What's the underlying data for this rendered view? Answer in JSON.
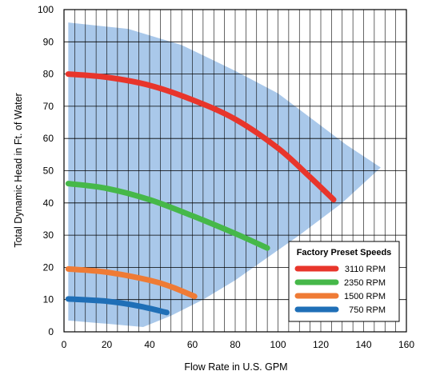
{
  "chart_data": {
    "type": "line",
    "xlabel": "Flow Rate in U.S. GPM",
    "ylabel": "Total Dynamic Head in Ft. of Water",
    "xlim": [
      0,
      160
    ],
    "ylim": [
      0,
      100
    ],
    "x_ticks": [
      0,
      20,
      40,
      60,
      80,
      100,
      120,
      140,
      160
    ],
    "y_ticks": [
      0,
      10,
      20,
      30,
      40,
      50,
      60,
      70,
      80,
      90,
      100
    ],
    "x_minor_step": 5,
    "grid": true,
    "operating_region": {
      "color": "#a9c8ea",
      "boundary": [
        [
          2,
          96
        ],
        [
          30,
          94
        ],
        [
          55,
          89
        ],
        [
          80,
          81
        ],
        [
          100,
          74
        ],
        [
          118,
          65
        ],
        [
          132,
          58
        ],
        [
          148,
          51
        ],
        [
          130,
          40
        ],
        [
          110,
          30
        ],
        [
          95,
          23
        ],
        [
          80,
          16
        ],
        [
          65,
          10
        ],
        [
          50,
          5
        ],
        [
          37,
          1.5
        ],
        [
          20,
          2.5
        ],
        [
          2,
          3.5
        ]
      ]
    },
    "legend": {
      "title": "Factory Preset Speeds",
      "position": "bottom-right"
    },
    "series": [
      {
        "name": "3110 RPM",
        "color": "#e8352b",
        "x": [
          2,
          20,
          40,
          60,
          80,
          100,
          115,
          126
        ],
        "y": [
          80,
          79,
          76.5,
          72,
          66,
          57,
          48,
          41
        ]
      },
      {
        "name": "2350 RPM",
        "color": "#46b849",
        "x": [
          2,
          20,
          40,
          60,
          80,
          95
        ],
        "y": [
          46,
          44.5,
          41,
          36,
          30.5,
          26
        ]
      },
      {
        "name": "1500 RPM",
        "color": "#ef7b35",
        "x": [
          2,
          20,
          40,
          50,
          61
        ],
        "y": [
          19.5,
          18.5,
          16,
          14,
          11
        ]
      },
      {
        "name": "750 RPM",
        "color": "#1f6fb7",
        "x": [
          2,
          20,
          35,
          48
        ],
        "y": [
          10.2,
          9.5,
          8,
          6
        ]
      }
    ]
  }
}
